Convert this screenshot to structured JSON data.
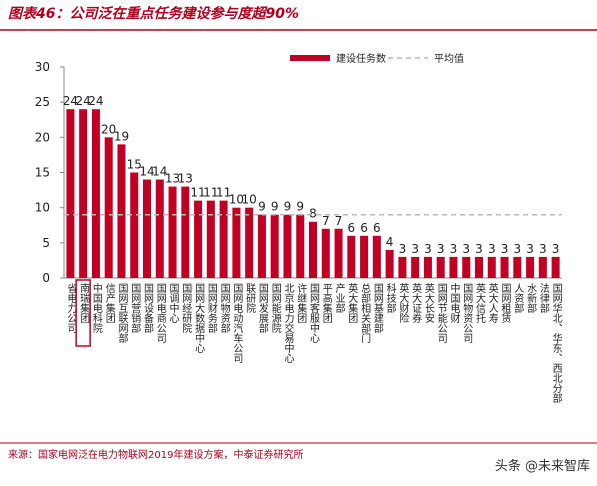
{
  "chart_data": {
    "type": "bar",
    "title": "图表46：公司泛在重点任务建设参与度超90%",
    "categories": [
      "省电力公司",
      "南瑞集团",
      "中国电科院",
      "信产集团",
      "国网互联网部",
      "国网营销部",
      "国网设备部",
      "国网电商公司",
      "国调中心",
      "国网经研院",
      "国网大数据中心",
      "国网财务部",
      "国网物资部",
      "国网电动汽车公司",
      "联研院",
      "国网发展部",
      "国网能源院",
      "北京电力交易中心",
      "许继集团",
      "国网客服中心",
      "平高集团",
      "产业部",
      "英大集团",
      "总部相关部门",
      "国网基建部",
      "科技部",
      "英大财险",
      "英大证券",
      "英大长安",
      "国网节能公司",
      "中国电财",
      "国网物资公司",
      "英大信托",
      "英大人寿",
      "国网租赁",
      "人资部",
      "水新部",
      "法律部",
      "国网华北、华东、西北分部"
    ],
    "series": [
      {
        "name": "建设任务数",
        "color": "#c00025",
        "values": [
          24,
          24,
          24,
          20,
          19,
          15,
          14,
          14,
          13,
          13,
          11,
          11,
          11,
          10,
          10,
          9,
          9,
          9,
          9,
          8,
          7,
          7,
          6,
          6,
          6,
          4,
          3,
          3,
          3,
          3,
          3,
          3,
          3,
          3,
          3,
          3,
          3,
          3,
          3
        ]
      }
    ],
    "average": {
      "name": "平均值",
      "value": 9,
      "color": "#bbbbbb"
    },
    "ylim": [
      0,
      30
    ],
    "yticks": [
      0,
      5,
      10,
      15,
      20,
      25,
      30
    ],
    "source": "来源：国家电网泛在电力物联网2019年建设方案，中泰证券研究所",
    "watermark": "头条 @未来智库"
  }
}
